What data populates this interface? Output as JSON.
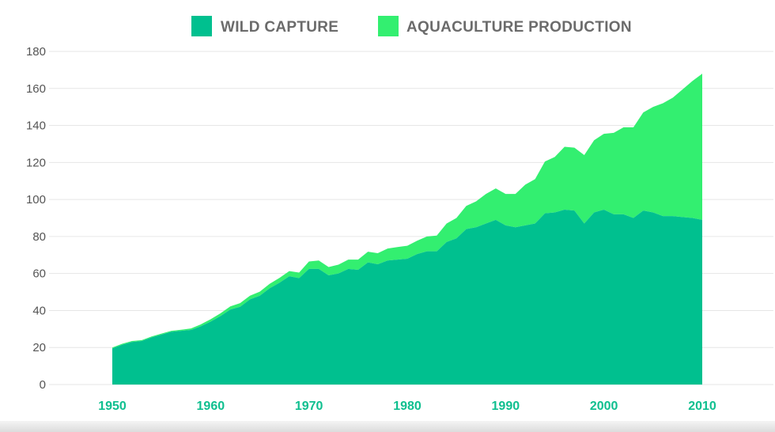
{
  "chart_data": {
    "type": "area",
    "stacked": true,
    "legend_position": "top-center",
    "grid": true,
    "xlim": [
      1950,
      2010
    ],
    "ylim": [
      0,
      180
    ],
    "x_ticks": [
      "1950",
      "1960",
      "1970",
      "1980",
      "1990",
      "2000",
      "2010"
    ],
    "y_ticks": [
      "0",
      "20",
      "40",
      "60",
      "80",
      "100",
      "120",
      "140",
      "160",
      "180"
    ],
    "x": [
      1950,
      1951,
      1952,
      1953,
      1954,
      1955,
      1956,
      1957,
      1958,
      1959,
      1960,
      1961,
      1962,
      1963,
      1964,
      1965,
      1966,
      1967,
      1968,
      1969,
      1970,
      1971,
      1972,
      1973,
      1974,
      1975,
      1976,
      1977,
      1978,
      1979,
      1980,
      1981,
      1982,
      1983,
      1984,
      1985,
      1986,
      1987,
      1988,
      1989,
      1990,
      1991,
      1992,
      1993,
      1994,
      1995,
      1996,
      1997,
      1998,
      1999,
      2000,
      2001,
      2002,
      2003,
      2004,
      2005,
      2006,
      2007,
      2008,
      2009,
      2010
    ],
    "series": [
      {
        "name": "WILD CAPTURE",
        "color": "#00c08f",
        "values": [
          19.5,
          21.5,
          23,
          23.5,
          25.5,
          27,
          28.5,
          29,
          29.5,
          31.5,
          34,
          37,
          40.5,
          42,
          46,
          48,
          52,
          55,
          58.5,
          57.5,
          62.5,
          62.5,
          59,
          60,
          62.5,
          62,
          66,
          65,
          67,
          67.5,
          68,
          70.5,
          72,
          72,
          77,
          79,
          84,
          85,
          87,
          89,
          86,
          85,
          86,
          87,
          92.5,
          93,
          94.5,
          94,
          87,
          93,
          94.5,
          92,
          92,
          90,
          94,
          93,
          91,
          91,
          90.5,
          90,
          89
        ]
      },
      {
        "name": "AQUACULTURE PRODUCTION",
        "color": "#33ef70",
        "values": [
          0.5,
          0.5,
          0.5,
          0.5,
          0.5,
          0.5,
          0.5,
          0.6,
          0.8,
          1,
          1.3,
          1.5,
          1.7,
          2,
          2,
          2.2,
          2.4,
          2.6,
          2.8,
          3,
          4,
          4.5,
          4.5,
          4.8,
          5,
          5.5,
          5.8,
          6,
          6.5,
          6.8,
          7,
          7.2,
          8,
          8.5,
          10,
          11,
          12.5,
          14,
          16,
          17,
          17,
          18,
          22,
          24,
          28,
          30,
          34,
          34,
          37,
          39,
          41,
          44,
          47,
          49,
          53,
          57,
          61,
          64,
          69,
          74,
          79
        ]
      }
    ]
  }
}
